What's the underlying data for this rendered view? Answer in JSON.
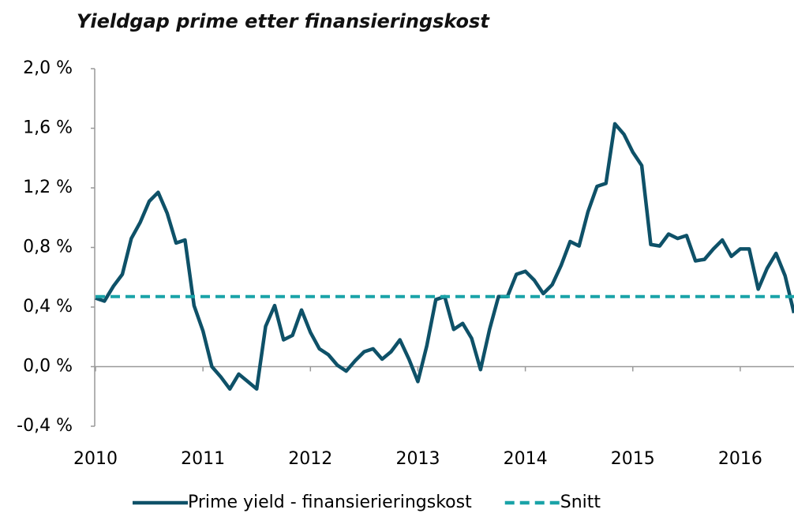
{
  "chart_data": {
    "type": "line",
    "title": "Yieldgap prime etter finansieringskost",
    "x": [
      2010,
      2010.083,
      2010.167,
      2010.25,
      2010.333,
      2010.417,
      2010.5,
      2010.583,
      2010.667,
      2010.75,
      2010.833,
      2010.917,
      2011,
      2011.083,
      2011.167,
      2011.25,
      2011.333,
      2011.417,
      2011.5,
      2011.583,
      2011.667,
      2011.75,
      2011.833,
      2011.917,
      2012,
      2012.083,
      2012.167,
      2012.25,
      2012.333,
      2012.417,
      2012.5,
      2012.583,
      2012.667,
      2012.75,
      2012.833,
      2012.917,
      2013,
      2013.083,
      2013.167,
      2013.25,
      2013.333,
      2013.417,
      2013.5,
      2013.583,
      2013.667,
      2013.75,
      2013.833,
      2013.917,
      2014,
      2014.083,
      2014.167,
      2014.25,
      2014.333,
      2014.417,
      2014.5,
      2014.583,
      2014.667,
      2014.75,
      2014.833,
      2014.917,
      2015,
      2015.083,
      2015.167,
      2015.25,
      2015.333,
      2015.417,
      2015.5,
      2015.583,
      2015.667,
      2015.75,
      2015.833,
      2015.917,
      2016,
      2016.083,
      2016.167,
      2016.25,
      2016.333,
      2016.417,
      2016.5
    ],
    "series": [
      {
        "name": "Prime yield - finansierieringskost",
        "color": "#0e5168",
        "values": [
          0.46,
          0.44,
          0.54,
          0.62,
          0.86,
          0.97,
          1.11,
          1.17,
          1.03,
          0.83,
          0.85,
          0.41,
          0.24,
          0.0,
          -0.07,
          -0.15,
          -0.05,
          -0.1,
          -0.15,
          0.27,
          0.41,
          0.18,
          0.21,
          0.38,
          0.23,
          0.12,
          0.08,
          0.01,
          -0.03,
          0.04,
          0.1,
          0.12,
          0.05,
          0.1,
          0.18,
          0.05,
          -0.1,
          0.14,
          0.45,
          0.47,
          0.25,
          0.29,
          0.19,
          -0.02,
          0.25,
          0.47,
          0.47,
          0.62,
          0.64,
          0.58,
          0.49,
          0.55,
          0.68,
          0.84,
          0.81,
          1.04,
          1.21,
          1.23,
          1.63,
          1.56,
          1.44,
          1.35,
          0.82,
          0.81,
          0.89,
          0.86,
          0.88,
          0.71,
          0.72,
          0.79,
          0.85,
          0.74,
          0.79,
          0.79,
          0.52,
          0.66,
          0.76,
          0.61,
          0.36
        ]
      }
    ],
    "reference_lines": [
      {
        "name": "Snitt",
        "value": 0.47,
        "color": "#1aa3a8",
        "dashed": true
      }
    ],
    "xlim": [
      2010,
      2016.5
    ],
    "xticks": [
      2010,
      2011,
      2012,
      2013,
      2014,
      2015,
      2016
    ],
    "ylim": [
      -0.4,
      2.0
    ],
    "yticks": [
      {
        "value": -0.4,
        "label": "-0,4 %"
      },
      {
        "value": 0.0,
        "label": "0,0 %"
      },
      {
        "value": 0.4,
        "label": "0,4 %"
      },
      {
        "value": 0.8,
        "label": "0,8 %"
      },
      {
        "value": 1.2,
        "label": "1,2 %"
      },
      {
        "value": 1.6,
        "label": "1,6 %"
      },
      {
        "value": 2.0,
        "label": "2,0 %"
      }
    ],
    "grid": false,
    "legend": "bottom"
  }
}
